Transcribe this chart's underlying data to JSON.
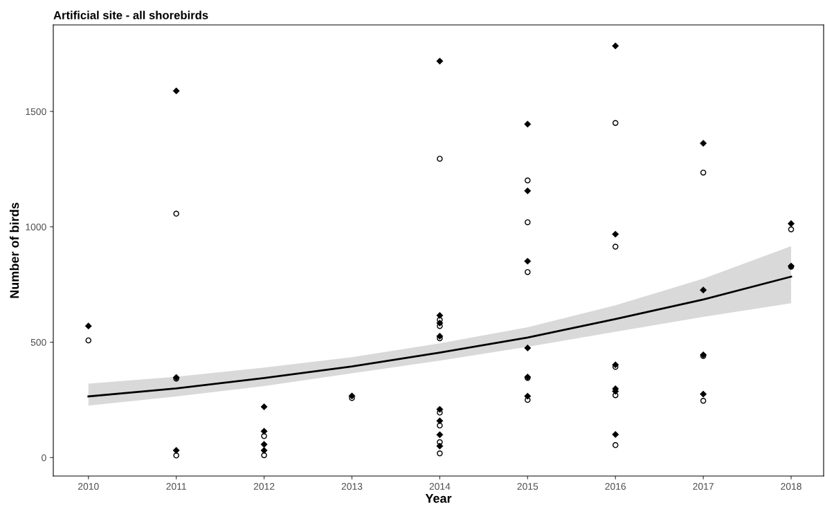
{
  "chart_data": {
    "type": "scatter",
    "title": "Artificial site - all shorebirds",
    "xlabel": "Year",
    "ylabel": "Number of birds",
    "xlim": [
      2009.6,
      2018.37
    ],
    "xticks": [
      2010,
      2011,
      2012,
      2013,
      2014,
      2015,
      2016,
      2017,
      2018
    ],
    "ylim": [
      -80,
      1875
    ],
    "yticks": [
      0,
      500,
      1000,
      1500
    ],
    "grid": false,
    "legend": false,
    "series": [
      {
        "marker": "diamond",
        "color": "#000000",
        "x": [
          2010,
          2011,
          2011,
          2011,
          2012,
          2012,
          2012,
          2012,
          2013,
          2014,
          2014,
          2014,
          2014,
          2014,
          2014,
          2014,
          2014,
          2015,
          2015,
          2015,
          2015,
          2015,
          2015,
          2016,
          2016,
          2016,
          2016,
          2016,
          2016,
          2017,
          2017,
          2017,
          2017,
          2018,
          2018
        ],
        "values": [
          570,
          1589,
          347,
          31,
          220,
          114,
          57,
          31,
          267,
          1718,
          616,
          583,
          526,
          209,
          159,
          99,
          50,
          1445,
          1156,
          851,
          475,
          349,
          266,
          1784,
          968,
          402,
          298,
          287,
          100,
          1362,
          726,
          445,
          275,
          1014,
          830
        ]
      },
      {
        "marker": "circle",
        "color": "#000000",
        "x": [
          2010,
          2011,
          2011,
          2011,
          2012,
          2012,
          2013,
          2014,
          2014,
          2014,
          2014,
          2014,
          2014,
          2014,
          2014,
          2015,
          2015,
          2015,
          2015,
          2015,
          2016,
          2016,
          2016,
          2016,
          2016,
          2017,
          2017,
          2017,
          2018,
          2018
        ],
        "values": [
          508,
          1057,
          342,
          9,
          93,
          10,
          258,
          1295,
          597,
          570,
          517,
          195,
          139,
          67,
          18,
          1201,
          1020,
          804,
          345,
          250,
          1450,
          914,
          393,
          270,
          54,
          1235,
          440,
          246,
          989,
          827
        ]
      },
      {
        "type": "line",
        "marker": "none",
        "color": "#000000",
        "x": [
          2010,
          2011,
          2012,
          2013,
          2014,
          2015,
          2016,
          2017,
          2018
        ],
        "values": [
          265,
          300,
          345,
          395,
          455,
          520,
          600,
          685,
          784
        ],
        "lower": [
          225,
          265,
          310,
          365,
          420,
          480,
          545,
          610,
          669
        ],
        "upper": [
          320,
          350,
          390,
          435,
          495,
          565,
          660,
          775,
          916
        ]
      }
    ]
  }
}
